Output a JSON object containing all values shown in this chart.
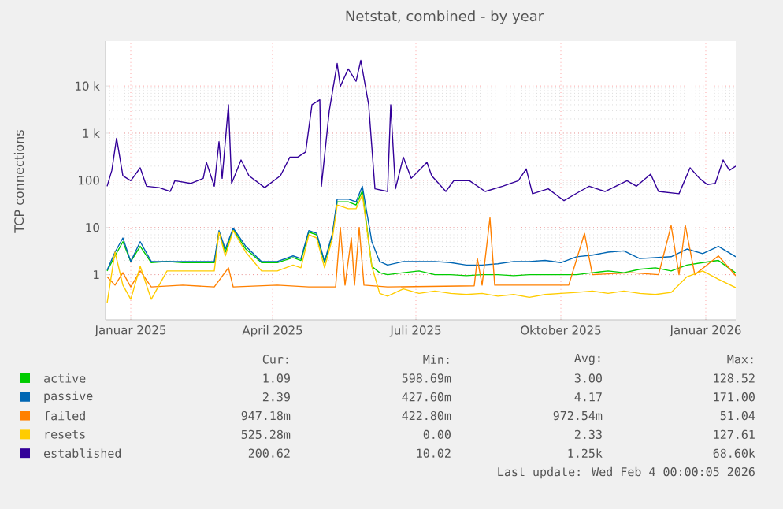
{
  "chart_data": {
    "type": "line",
    "title": "Netstat, combined - by year",
    "ylabel": "TCP connections",
    "log": "y",
    "grid": true,
    "legend": "bottom",
    "line_style": "solid",
    "xlim": [
      "2024-12-31",
      "2026-02-04"
    ],
    "ylim": [
      0.11,
      90000
    ],
    "xticks": [
      {
        "value": "2025-01-16",
        "label": "Januar 2025"
      },
      {
        "value": "2025-04-16",
        "label": "April 2025"
      },
      {
        "value": "2025-07-16",
        "label": "Juli 2025"
      },
      {
        "value": "2025-10-16",
        "label": "Oktober 2025"
      },
      {
        "value": "2026-01-16",
        "label": "Januar 2026"
      }
    ],
    "yticks": [
      1,
      10,
      100,
      {
        "value": 1000,
        "label": "1 k"
      },
      {
        "value": 10000,
        "label": "10 k"
      }
    ],
    "x": [
      "2025-01-01",
      "2025-01-06",
      "2025-01-11",
      "2025-01-16",
      "2025-01-22",
      "2025-01-29",
      "2025-02-08",
      "2025-02-18",
      "2025-02-28",
      "2025-03-10",
      "2025-03-13",
      "2025-03-17",
      "2025-03-22",
      "2025-03-30",
      "2025-04-09",
      "2025-04-19",
      "2025-04-29",
      "2025-05-04",
      "2025-05-09",
      "2025-05-14",
      "2025-05-19",
      "2025-05-24",
      "2025-05-27",
      "2025-06-03",
      "2025-06-08",
      "2025-06-12",
      "2025-06-18",
      "2025-06-23",
      "2025-06-28",
      "2025-07-08",
      "2025-07-18",
      "2025-07-28",
      "2025-08-07",
      "2025-08-17",
      "2025-08-27",
      "2025-09-06",
      "2025-09-16",
      "2025-09-26",
      "2025-10-06",
      "2025-10-16",
      "2025-10-26",
      "2025-11-05",
      "2025-11-15",
      "2025-11-25",
      "2025-12-05",
      "2025-12-15",
      "2025-12-25",
      "2026-01-04",
      "2026-01-14",
      "2026-01-24",
      "2026-02-04"
    ],
    "series": [
      {
        "name": "active",
        "color": "#00cc00",
        "values": [
          1.2,
          2.5,
          5,
          1.9,
          4,
          1.8,
          1.9,
          1.8,
          1.8,
          1.8,
          8,
          3,
          9,
          3.5,
          1.8,
          1.8,
          2.3,
          2,
          8,
          7,
          1.8,
          7,
          35,
          35,
          30,
          60,
          1.5,
          1.1,
          1.0,
          1.1,
          1.2,
          1.0,
          1.0,
          0.95,
          1.0,
          1.0,
          0.95,
          1.0,
          1.0,
          1.0,
          1.0,
          1.1,
          1.2,
          1.1,
          1.3,
          1.4,
          1.2,
          1.6,
          1.8,
          2.0,
          1.09
        ]
      },
      {
        "name": "passive",
        "color": "#0066b3",
        "values": [
          1.25,
          3,
          6,
          1.9,
          5,
          1.9,
          1.9,
          1.9,
          1.9,
          1.9,
          8.6,
          3.5,
          9.7,
          4,
          1.9,
          1.9,
          2.5,
          2.2,
          8.6,
          7.5,
          1.9,
          7.5,
          40,
          40,
          35,
          75,
          5,
          1.9,
          1.6,
          1.9,
          1.9,
          1.9,
          1.8,
          1.6,
          1.6,
          1.7,
          1.9,
          1.9,
          2.0,
          1.8,
          2.4,
          2.6,
          3.0,
          3.2,
          2.2,
          2.3,
          2.4,
          3.5,
          2.8,
          4.0,
          2.4
        ]
      },
      {
        "name": "failed",
        "color": "#ff8000",
        "x": [
          "2025-01-01",
          "2025-01-06",
          "2025-01-11",
          "2025-01-16",
          "2025-01-22",
          "2025-01-29",
          "2025-02-18",
          "2025-03-10",
          "2025-03-19",
          "2025-03-22",
          "2025-04-19",
          "2025-05-09",
          "2025-05-26",
          "2025-05-29",
          "2025-06-01",
          "2025-06-05",
          "2025-06-07",
          "2025-06-10",
          "2025-06-13",
          "2025-06-28",
          "2025-08-22",
          "2025-08-24",
          "2025-08-27",
          "2025-09-01",
          "2025-09-04",
          "2025-10-21",
          "2025-10-31",
          "2025-11-05",
          "2025-11-30",
          "2025-12-17",
          "2025-12-25",
          "2025-12-30",
          "2026-01-03",
          "2026-01-09",
          "2026-01-24",
          "2026-02-04"
        ],
        "values": [
          0.9,
          0.6,
          1.1,
          0.55,
          1.2,
          0.55,
          0.6,
          0.55,
          1.4,
          0.55,
          0.6,
          0.55,
          0.55,
          10,
          0.6,
          6,
          0.6,
          10,
          0.6,
          0.55,
          0.58,
          2.2,
          0.6,
          16,
          0.6,
          0.6,
          7.5,
          1.0,
          1.1,
          1.0,
          11,
          1.0,
          11,
          1.0,
          2.5,
          0.95
        ]
      },
      {
        "name": "resets",
        "color": "#ffcc00",
        "values": [
          0.25,
          3,
          0.6,
          0.3,
          1.5,
          0.3,
          1.2,
          1.2,
          1.2,
          1.2,
          8,
          2.5,
          8.6,
          3,
          1.2,
          1.2,
          1.6,
          1.4,
          7,
          6,
          1.4,
          6,
          30,
          25,
          25,
          50,
          1.5,
          0.4,
          0.35,
          0.5,
          0.4,
          0.45,
          0.4,
          0.38,
          0.4,
          0.35,
          0.38,
          0.33,
          0.38,
          0.4,
          0.42,
          0.45,
          0.4,
          0.45,
          0.4,
          0.38,
          0.42,
          0.9,
          1.2,
          0.8,
          0.53
        ]
      },
      {
        "name": "established",
        "color": "#330099",
        "x": [
          "2025-01-01",
          "2025-01-04",
          "2025-01-07",
          "2025-01-11",
          "2025-01-16",
          "2025-01-22",
          "2025-01-26",
          "2025-02-03",
          "2025-02-10",
          "2025-02-13",
          "2025-02-23",
          "2025-03-03",
          "2025-03-05",
          "2025-03-10",
          "2025-03-13",
          "2025-03-15",
          "2025-03-19",
          "2025-03-21",
          "2025-03-27",
          "2025-04-01",
          "2025-04-11",
          "2025-04-21",
          "2025-04-27",
          "2025-05-02",
          "2025-05-07",
          "2025-05-11",
          "2025-05-16",
          "2025-05-17",
          "2025-05-22",
          "2025-05-27",
          "2025-05-29",
          "2025-06-03",
          "2025-06-08",
          "2025-06-11",
          "2025-06-16",
          "2025-06-20",
          "2025-06-28",
          "2025-06-30",
          "2025-07-03",
          "2025-07-08",
          "2025-07-13",
          "2025-07-23",
          "2025-07-26",
          "2025-08-04",
          "2025-08-09",
          "2025-08-19",
          "2025-08-29",
          "2025-09-09",
          "2025-09-19",
          "2025-09-24",
          "2025-09-28",
          "2025-10-08",
          "2025-10-18",
          "2025-10-28",
          "2025-11-03",
          "2025-11-13",
          "2025-11-27",
          "2025-12-03",
          "2025-12-12",
          "2025-12-17",
          "2025-12-30",
          "2026-01-06",
          "2026-01-12",
          "2026-01-17",
          "2026-01-22",
          "2026-01-27",
          "2026-01-31",
          "2026-02-04"
        ],
        "values": [
          75,
          163,
          780,
          125,
          98,
          184,
          75,
          70,
          58,
          98,
          86,
          110,
          240,
          75,
          660,
          110,
          4000,
          86,
          270,
          125,
          70,
          125,
          310,
          310,
          400,
          4000,
          5100,
          75,
          3000,
          30000,
          9800,
          23000,
          12600,
          35000,
          4000,
          66,
          58,
          4000,
          66,
          310,
          110,
          240,
          125,
          58,
          98,
          98,
          58,
          75,
          98,
          175,
          52,
          66,
          37,
          58,
          75,
          58,
          98,
          75,
          135,
          58,
          52,
          184,
          110,
          81,
          86,
          270,
          163,
          200
        ]
      }
    ],
    "annotations": [
      "Cur:",
      "Min:",
      "Avg:",
      "Max:",
      "1.09",
      "598.69m",
      "3.00",
      "128.52",
      "2.39",
      "427.60m",
      "4.17",
      "171.00",
      "947.18m",
      "422.80m",
      "972.54m",
      "51.04",
      "525.28m",
      "0.00",
      "2.33",
      "127.61",
      "200.62",
      "10.02",
      "1.25k",
      "68.60k",
      "Last update: Wed Feb  4 00:00:05 2026"
    ]
  }
}
